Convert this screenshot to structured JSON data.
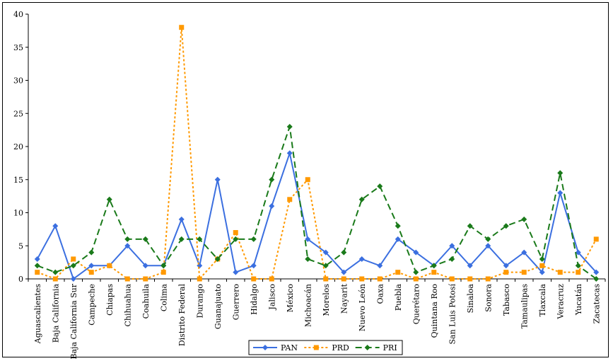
{
  "chart_data": {
    "type": "line",
    "categories": [
      "Aguascalientes",
      "Baja California",
      "Baja California Sur",
      "Campeche",
      "Chiapas",
      "Chihuahua",
      "Coahuila",
      "Colima",
      "Distrito Federal",
      "Durango",
      "Guanajuato",
      "Guerrero",
      "Hidalgo",
      "Jalisco",
      "México",
      "Michoacán",
      "Morelos",
      "Nayarit",
      "Nuevo León",
      "Oaxa",
      "Puebla",
      "Querétaro",
      "Quintana Roo",
      "San Luis Potosí",
      "Sinaloa",
      "Sonora",
      "Tabasco",
      "Tamaulipas",
      "Tlaxcala",
      "Veracruz",
      "Yucatán",
      "Zacatecas"
    ],
    "series": [
      {
        "name": "PAN",
        "color": "#3b6fe0",
        "dash": "solid",
        "marker": "diamond",
        "values": [
          3,
          8,
          0,
          2,
          2,
          5,
          2,
          2,
          9,
          2,
          15,
          1,
          2,
          11,
          19,
          6,
          4,
          1,
          3,
          2,
          6,
          4,
          2,
          5,
          2,
          5,
          2,
          4,
          1,
          13,
          4,
          1
        ]
      },
      {
        "name": "PRD",
        "color": "#ff9900",
        "dash": "dotted",
        "marker": "square",
        "values": [
          1,
          0,
          3,
          1,
          2,
          0,
          0,
          1,
          38,
          0,
          3,
          7,
          0,
          0,
          12,
          15,
          0,
          0,
          0,
          0,
          1,
          0,
          1,
          0,
          0,
          0,
          1,
          1,
          2,
          1,
          1,
          6
        ]
      },
      {
        "name": "PRI",
        "color": "#1a7a1a",
        "dash": "dashed",
        "marker": "diamond",
        "values": [
          2,
          1,
          2,
          4,
          12,
          6,
          6,
          2,
          6,
          6,
          3,
          6,
          6,
          15,
          23,
          3,
          2,
          4,
          12,
          14,
          8,
          1,
          2,
          3,
          8,
          6,
          8,
          9,
          3,
          16,
          2,
          0
        ]
      }
    ],
    "y_ticks": [
      0,
      5,
      10,
      15,
      20,
      25,
      30,
      35,
      40
    ],
    "ylim": [
      0,
      40
    ],
    "title": "",
    "xlabel": "",
    "ylabel": "",
    "legend_position": "bottom-center"
  }
}
